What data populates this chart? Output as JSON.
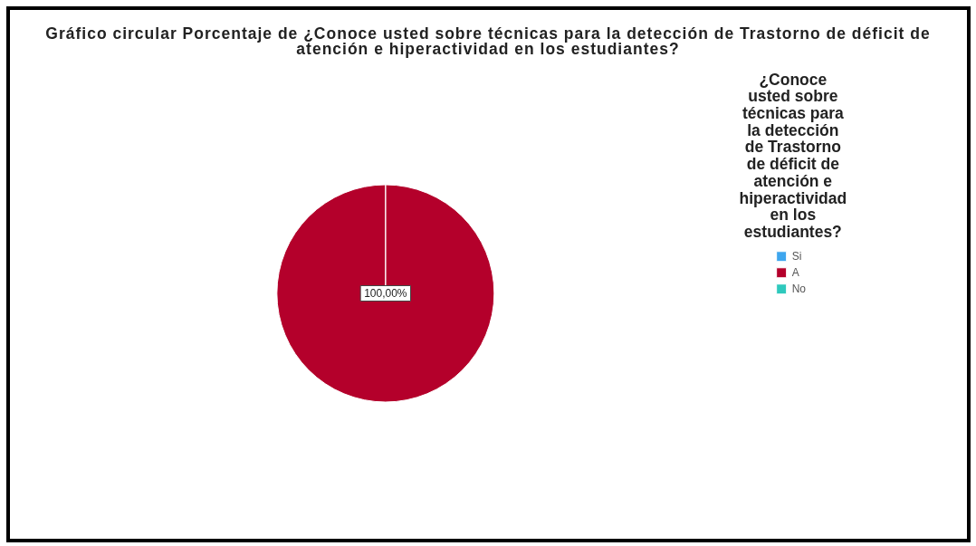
{
  "chart_data": {
    "type": "pie",
    "title": "Gráfico circular Porcentaje de ¿Conoce usted sobre técnicas para la detección de Trastorno de déficit de atención e hiperactividad en los estudiantes?",
    "legend_title": "¿Conoce usted sobre técnicas para la detección de Trastorno de déficit de atención e hiperactividad en los estudiantes?",
    "categories": [
      "Si",
      "A",
      "No"
    ],
    "values": [
      0,
      100,
      0
    ],
    "colors": [
      "#3ea6ee",
      "#b4002b",
      "#2ec9bd"
    ],
    "value_labels": [
      null,
      "100,00%",
      null
    ],
    "legend": "top right"
  }
}
